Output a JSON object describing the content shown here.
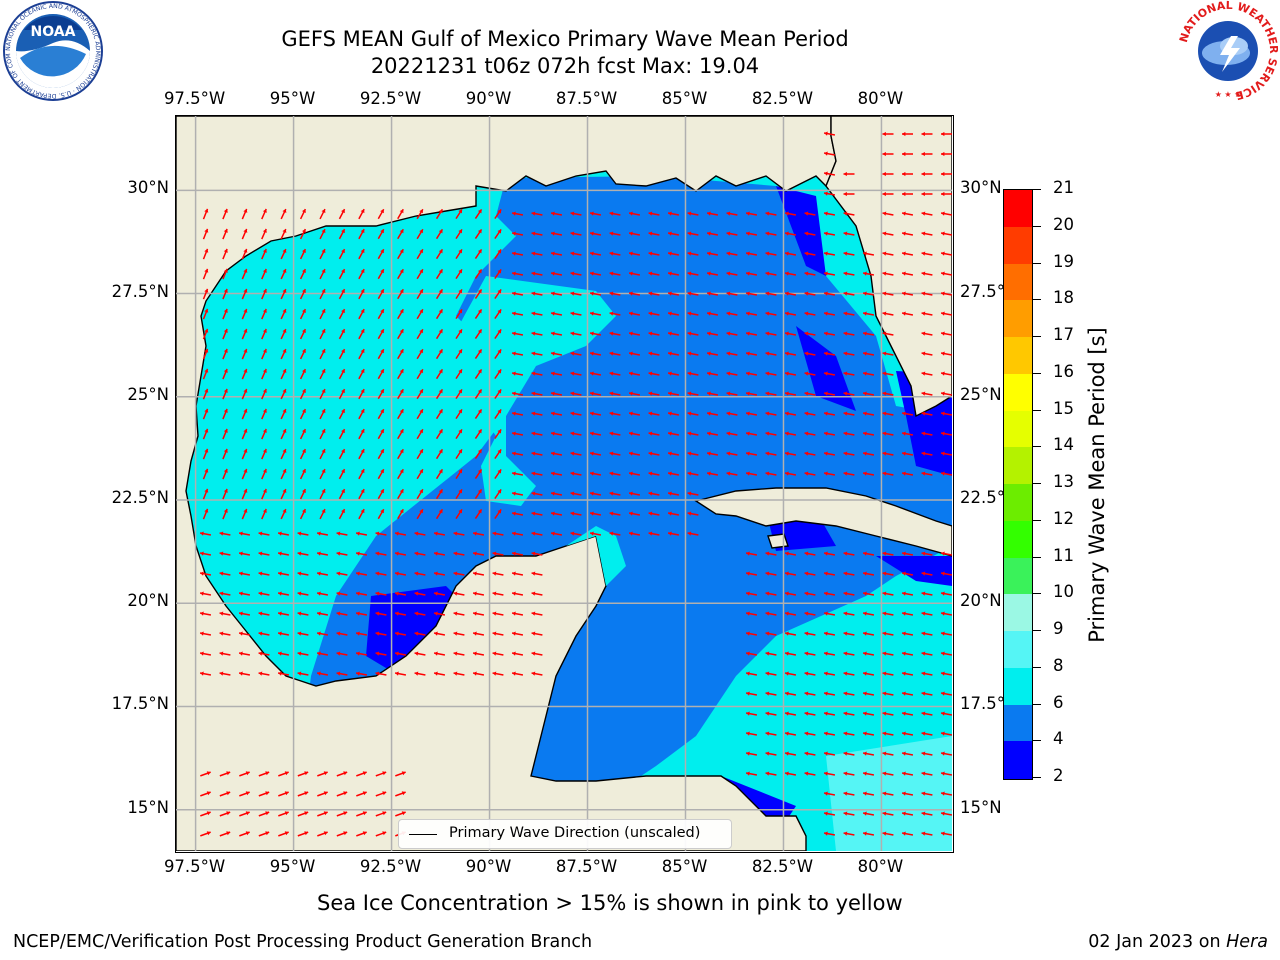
{
  "title": {
    "line1": "GEFS MEAN Gulf of Mexico Primary Wave Mean Period",
    "line2": "20221231 t06z 072h fcst   Max: 19.04"
  },
  "map": {
    "lon_labels": [
      "97.5°W",
      "95°W",
      "92.5°W",
      "90°W",
      "87.5°W",
      "85°W",
      "82.5°W",
      "80°W"
    ],
    "lat_labels": [
      "30°N",
      "27.5°N",
      "25°N",
      "22.5°N",
      "20°N",
      "17.5°N",
      "15°N"
    ],
    "lon_range": [
      -98,
      -78.2
    ],
    "lat_range": [
      14,
      31.8
    ],
    "legend_label": "Primary Wave Direction (unscaled)",
    "colors": {
      "land": "#efedda",
      "coast": "#000000",
      "grid": "#b0b0b0",
      "arrow": "#ff0000"
    }
  },
  "colorbar": {
    "label": "Primary Wave Mean Period [s]",
    "ticks": [
      "2",
      "4",
      "6",
      "8",
      "9",
      "10",
      "11",
      "12",
      "13",
      "14",
      "15",
      "16",
      "17",
      "18",
      "19",
      "20",
      "21"
    ],
    "colors": [
      "#0000ff",
      "#0a7af0",
      "#00eeee",
      "#55f5f5",
      "#9bf8e4",
      "#3af25a",
      "#33ff00",
      "#6ced00",
      "#b4f200",
      "#e5ff00",
      "#ffff00",
      "#ffc800",
      "#ff9d00",
      "#ff6e00",
      "#ff3c00",
      "#ff0000"
    ]
  },
  "footer": {
    "sea_ice_note": "Sea Ice Concentration > 15% is shown in pink to yellow",
    "left": "NCEP/EMC/Verification Post Processing Product Generation Branch",
    "right_date": "02 Jan 2023 on",
    "right_host": "Hera"
  },
  "logos": {
    "left_text": "NOAA",
    "left_ring": "NATIONAL OCEANIC AND ATMOSPHERIC ADMINISTRATION · U.S. DEPARTMENT OF COMMERCE",
    "right_ring": "NATIONAL WEATHER SERVICE"
  }
}
